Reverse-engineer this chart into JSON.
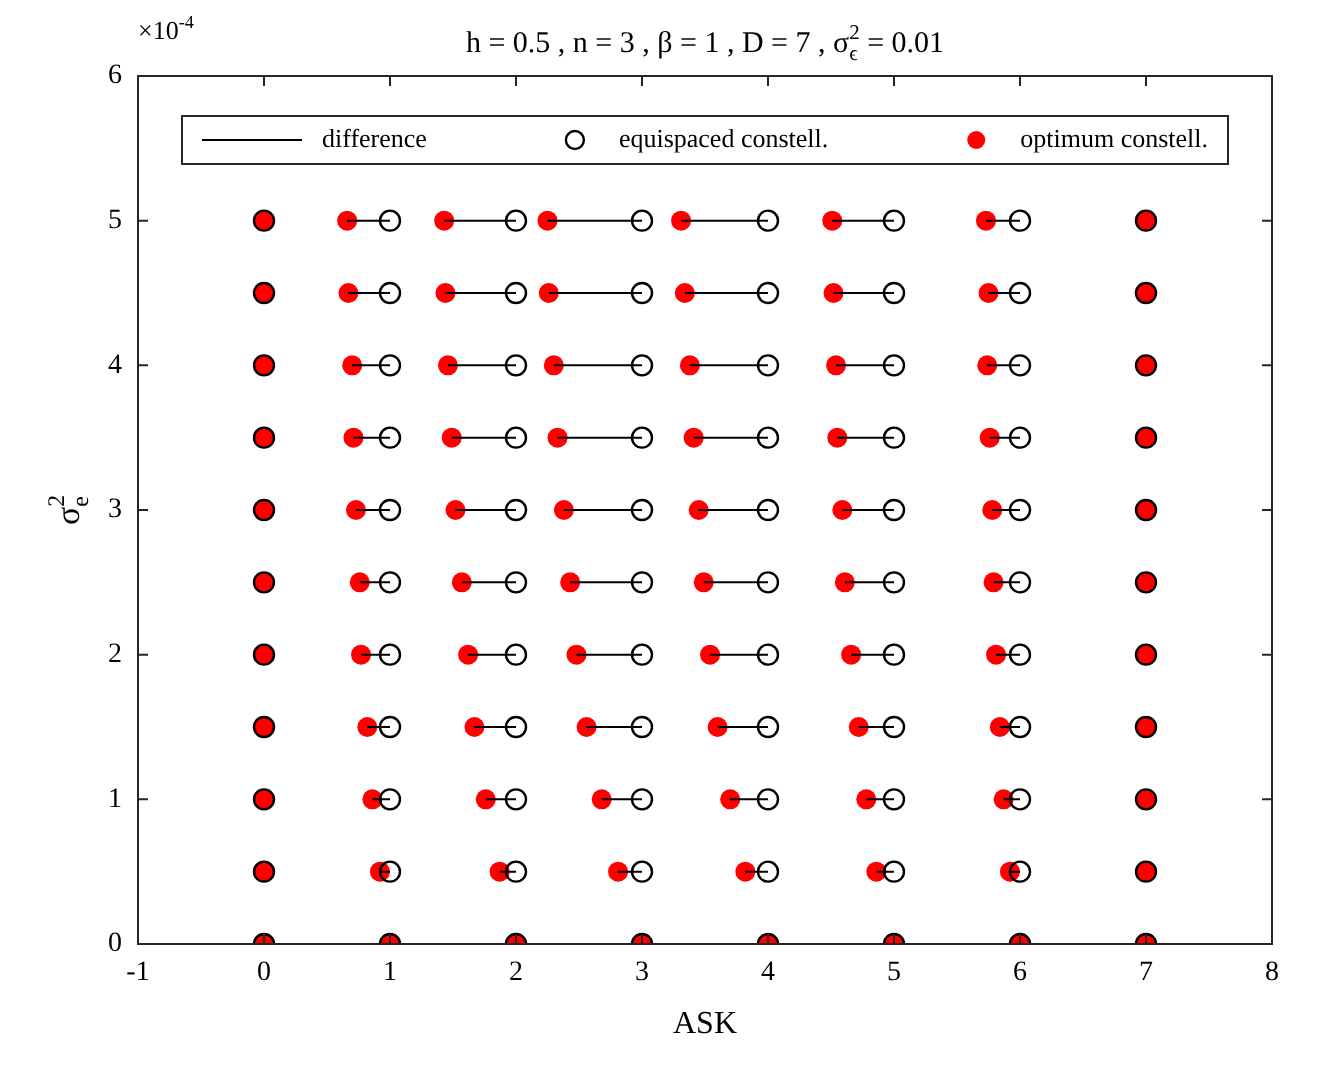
{
  "chart_data": {
    "type": "scatter",
    "title": "h = 0.5 , n = 3 , β = 1 , D = 7 , σ$^{2}$$_{ϵ}$ = 0.01",
    "xlabel": "ASK",
    "ylabel": "σ$^{2}$$_{e}$",
    "annotations": [
      "×10$^{-4}$"
    ],
    "xlim": [
      -1,
      8
    ],
    "xticks": [
      -1,
      0,
      1,
      2,
      3,
      4,
      5,
      6,
      7,
      8
    ],
    "ylim": [
      0,
      6
    ],
    "yticks": [
      0,
      1,
      2,
      3,
      4,
      5,
      6
    ],
    "grid": false,
    "legend": "top",
    "series": [
      {
        "name": "difference",
        "type": "line",
        "color": "#000000",
        "line_style": "solid",
        "marker": "none",
        "x": [
          0.92,
          1,
          null,
          1.87,
          2,
          null,
          2.81,
          3,
          null,
          3.82,
          4,
          null,
          4.86,
          5,
          null,
          5.92,
          6,
          null,
          0.86,
          1,
          null,
          1.76,
          2,
          null,
          2.68,
          3,
          null,
          3.7,
          4,
          null,
          4.78,
          5,
          null,
          5.87,
          6,
          null,
          0.82,
          1,
          null,
          1.67,
          2,
          null,
          2.56,
          3,
          null,
          3.6,
          4,
          null,
          4.72,
          5,
          null,
          5.84,
          6,
          null,
          0.77,
          1,
          null,
          1.62,
          2,
          null,
          2.48,
          3,
          null,
          3.54,
          4,
          null,
          4.66,
          5,
          null,
          5.81,
          6,
          null,
          0.76,
          1,
          null,
          1.57,
          2,
          null,
          2.43,
          3,
          null,
          3.49,
          4,
          null,
          4.61,
          5,
          null,
          5.79,
          6,
          null,
          0.73,
          1,
          null,
          1.52,
          2,
          null,
          2.38,
          3,
          null,
          3.45,
          4,
          null,
          4.59,
          5,
          null,
          5.78,
          6,
          null,
          0.71,
          1,
          null,
          1.49,
          2,
          null,
          2.33,
          3,
          null,
          3.41,
          4,
          null,
          4.55,
          5,
          null,
          5.76,
          6,
          null,
          0.7,
          1,
          null,
          1.46,
          2,
          null,
          2.3,
          3,
          null,
          3.38,
          4,
          null,
          4.54,
          5,
          null,
          5.74,
          6,
          null,
          0.67,
          1,
          null,
          1.44,
          2,
          null,
          2.26,
          3,
          null,
          3.34,
          4,
          null,
          4.52,
          5,
          null,
          5.75,
          6,
          null,
          0.66,
          1,
          null,
          1.43,
          2,
          null,
          2.25,
          3,
          null,
          3.31,
          4,
          null,
          4.51,
          5,
          null,
          5.73,
          6,
          null
        ],
        "values": [
          0.5,
          0.5,
          null,
          0.5,
          0.5,
          null,
          0.5,
          0.5,
          null,
          0.5,
          0.5,
          null,
          0.5,
          0.5,
          null,
          0.5,
          0.5,
          null,
          1,
          1,
          null,
          1,
          1,
          null,
          1,
          1,
          null,
          1,
          1,
          null,
          1,
          1,
          null,
          1,
          1,
          null,
          1.5,
          1.5,
          null,
          1.5,
          1.5,
          null,
          1.5,
          1.5,
          null,
          1.5,
          1.5,
          null,
          1.5,
          1.5,
          null,
          1.5,
          1.5,
          null,
          2,
          2,
          null,
          2,
          2,
          null,
          2,
          2,
          null,
          2,
          2,
          null,
          2,
          2,
          null,
          2,
          2,
          null,
          2.5,
          2.5,
          null,
          2.5,
          2.5,
          null,
          2.5,
          2.5,
          null,
          2.5,
          2.5,
          null,
          2.5,
          2.5,
          null,
          2.5,
          2.5,
          null,
          3,
          3,
          null,
          3,
          3,
          null,
          3,
          3,
          null,
          3,
          3,
          null,
          3,
          3,
          null,
          3,
          3,
          null,
          3.5,
          3.5,
          null,
          3.5,
          3.5,
          null,
          3.5,
          3.5,
          null,
          3.5,
          3.5,
          null,
          3.5,
          3.5,
          null,
          3.5,
          3.5,
          null,
          4,
          4,
          null,
          4,
          4,
          null,
          4,
          4,
          null,
          4,
          4,
          null,
          4,
          4,
          null,
          4,
          4,
          null,
          4.5,
          4.5,
          null,
          4.5,
          4.5,
          null,
          4.5,
          4.5,
          null,
          4.5,
          4.5,
          null,
          4.5,
          4.5,
          null,
          4.5,
          4.5,
          null,
          5,
          5,
          null,
          5,
          5,
          null,
          5,
          5,
          null,
          5,
          5,
          null,
          5,
          5,
          null,
          5,
          5,
          null
        ]
      },
      {
        "name": "equispaced constell.",
        "color": "#000000",
        "marker": "circle",
        "x": [
          0,
          1,
          2,
          3,
          4,
          5,
          6,
          7,
          0,
          1,
          2,
          3,
          4,
          5,
          6,
          7,
          0,
          1,
          2,
          3,
          4,
          5,
          6,
          7,
          0,
          1,
          2,
          3,
          4,
          5,
          6,
          7,
          0,
          1,
          2,
          3,
          4,
          5,
          6,
          7,
          0,
          1,
          2,
          3,
          4,
          5,
          6,
          7,
          0,
          1,
          2,
          3,
          4,
          5,
          6,
          7,
          0,
          1,
          2,
          3,
          4,
          5,
          6,
          7,
          0,
          1,
          2,
          3,
          4,
          5,
          6,
          7,
          0,
          1,
          2,
          3,
          4,
          5,
          6,
          7,
          0,
          1,
          2,
          3,
          4,
          5,
          6,
          7
        ],
        "values": [
          0,
          0,
          0,
          0,
          0,
          0,
          0,
          0,
          0.5,
          0.5,
          0.5,
          0.5,
          0.5,
          0.5,
          0.5,
          0.5,
          1,
          1,
          1,
          1,
          1,
          1,
          1,
          1,
          1.5,
          1.5,
          1.5,
          1.5,
          1.5,
          1.5,
          1.5,
          1.5,
          2,
          2,
          2,
          2,
          2,
          2,
          2,
          2,
          2.5,
          2.5,
          2.5,
          2.5,
          2.5,
          2.5,
          2.5,
          2.5,
          3,
          3,
          3,
          3,
          3,
          3,
          3,
          3,
          3.5,
          3.5,
          3.5,
          3.5,
          3.5,
          3.5,
          3.5,
          3.5,
          4,
          4,
          4,
          4,
          4,
          4,
          4,
          4,
          4.5,
          4.5,
          4.5,
          4.5,
          4.5,
          4.5,
          4.5,
          4.5,
          5,
          5,
          5,
          5,
          5,
          5,
          5,
          5
        ]
      },
      {
        "name": "optimum constell.",
        "color": "#ff0000",
        "marker": "circle",
        "x": [
          0,
          1,
          2,
          3,
          4,
          5,
          6,
          7,
          0,
          0.92,
          1.87,
          2.81,
          3.82,
          4.86,
          5.92,
          7,
          0,
          0.86,
          1.76,
          2.68,
          3.7,
          4.78,
          5.87,
          7,
          0,
          0.82,
          1.67,
          2.56,
          3.6,
          4.72,
          5.84,
          7,
          0,
          0.77,
          1.62,
          2.48,
          3.54,
          4.66,
          5.81,
          7,
          0,
          0.76,
          1.57,
          2.43,
          3.49,
          4.61,
          5.79,
          7,
          0,
          0.73,
          1.52,
          2.38,
          3.45,
          4.59,
          5.78,
          7,
          0,
          0.71,
          1.49,
          2.33,
          3.41,
          4.55,
          5.76,
          7,
          0,
          0.7,
          1.46,
          2.3,
          3.38,
          4.54,
          5.74,
          7,
          0,
          0.67,
          1.44,
          2.26,
          3.34,
          4.52,
          5.75,
          7,
          0,
          0.66,
          1.43,
          2.25,
          3.31,
          4.51,
          5.73,
          7
        ],
        "values": [
          0,
          0,
          0,
          0,
          0,
          0,
          0,
          0,
          0.5,
          0.5,
          0.5,
          0.5,
          0.5,
          0.5,
          0.5,
          0.5,
          1,
          1,
          1,
          1,
          1,
          1,
          1,
          1,
          1.5,
          1.5,
          1.5,
          1.5,
          1.5,
          1.5,
          1.5,
          1.5,
          2,
          2,
          2,
          2,
          2,
          2,
          2,
          2,
          2.5,
          2.5,
          2.5,
          2.5,
          2.5,
          2.5,
          2.5,
          2.5,
          3,
          3,
          3,
          3,
          3,
          3,
          3,
          3,
          3.5,
          3.5,
          3.5,
          3.5,
          3.5,
          3.5,
          3.5,
          3.5,
          4,
          4,
          4,
          4,
          4,
          4,
          4,
          4,
          4.5,
          4.5,
          4.5,
          4.5,
          4.5,
          4.5,
          4.5,
          4.5,
          5,
          5,
          5,
          5,
          5,
          5,
          5,
          5
        ]
      }
    ]
  }
}
